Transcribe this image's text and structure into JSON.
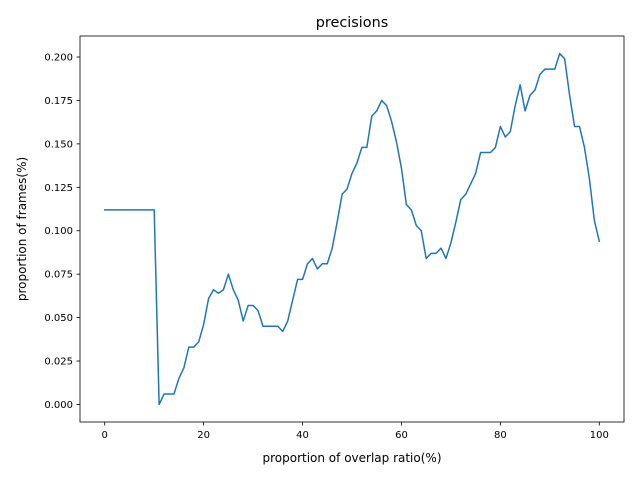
{
  "chart_data": {
    "type": "line",
    "title": "precisions",
    "xlabel": "proportion of overlap ratio(%)",
    "ylabel": "proportion of frames(%)",
    "xlim": [
      -5,
      105
    ],
    "ylim": [
      -0.0101,
      0.2121
    ],
    "grid": false,
    "xticks": [
      0,
      20,
      40,
      60,
      80,
      100
    ],
    "xtick_labels": [
      "0",
      "20",
      "40",
      "60",
      "80",
      "100"
    ],
    "yticks": [
      0.0,
      0.025,
      0.05,
      0.075,
      0.1,
      0.125,
      0.15,
      0.175,
      0.2
    ],
    "ytick_labels": [
      "0.000",
      "0.025",
      "0.050",
      "0.075",
      "0.100",
      "0.125",
      "0.150",
      "0.175",
      "0.200"
    ],
    "series": [
      {
        "color": "#1f77b4",
        "x": [
          0,
          1,
          2,
          3,
          4,
          5,
          6,
          7,
          8,
          9,
          10,
          11,
          12,
          13,
          14,
          15,
          16,
          17,
          18,
          19,
          20,
          21,
          22,
          23,
          24,
          25,
          26,
          27,
          28,
          29,
          30,
          31,
          32,
          33,
          34,
          35,
          36,
          37,
          38,
          39,
          40,
          41,
          42,
          43,
          44,
          45,
          46,
          47,
          48,
          49,
          50,
          51,
          52,
          53,
          54,
          55,
          56,
          57,
          58,
          59,
          60,
          61,
          62,
          63,
          64,
          65,
          66,
          67,
          68,
          69,
          70,
          71,
          72,
          73,
          74,
          75,
          76,
          77,
          78,
          79,
          80,
          81,
          82,
          83,
          84,
          85,
          86,
          87,
          88,
          89,
          90,
          91,
          92,
          93,
          94,
          95,
          96,
          97,
          98,
          99,
          100
        ],
        "values": [
          0.112,
          0.112,
          0.112,
          0.112,
          0.112,
          0.112,
          0.112,
          0.112,
          0.112,
          0.112,
          0.112,
          0.0,
          0.006,
          0.006,
          0.006,
          0.015,
          0.021,
          0.033,
          0.033,
          0.036,
          0.046,
          0.061,
          0.066,
          0.064,
          0.066,
          0.075,
          0.066,
          0.06,
          0.048,
          0.057,
          0.057,
          0.054,
          0.045,
          0.045,
          0.045,
          0.045,
          0.042,
          0.048,
          0.06,
          0.072,
          0.072,
          0.081,
          0.084,
          0.078,
          0.081,
          0.081,
          0.09,
          0.105,
          0.121,
          0.124,
          0.133,
          0.139,
          0.148,
          0.148,
          0.166,
          0.169,
          0.175,
          0.172,
          0.163,
          0.151,
          0.136,
          0.115,
          0.112,
          0.103,
          0.1,
          0.084,
          0.087,
          0.087,
          0.09,
          0.084,
          0.093,
          0.105,
          0.118,
          0.121,
          0.127,
          0.133,
          0.145,
          0.145,
          0.145,
          0.148,
          0.16,
          0.154,
          0.157,
          0.172,
          0.184,
          0.169,
          0.178,
          0.181,
          0.19,
          0.193,
          0.193,
          0.193,
          0.202,
          0.199,
          0.178,
          0.16,
          0.16,
          0.148,
          0.13,
          0.106,
          0.094
        ]
      }
    ]
  }
}
